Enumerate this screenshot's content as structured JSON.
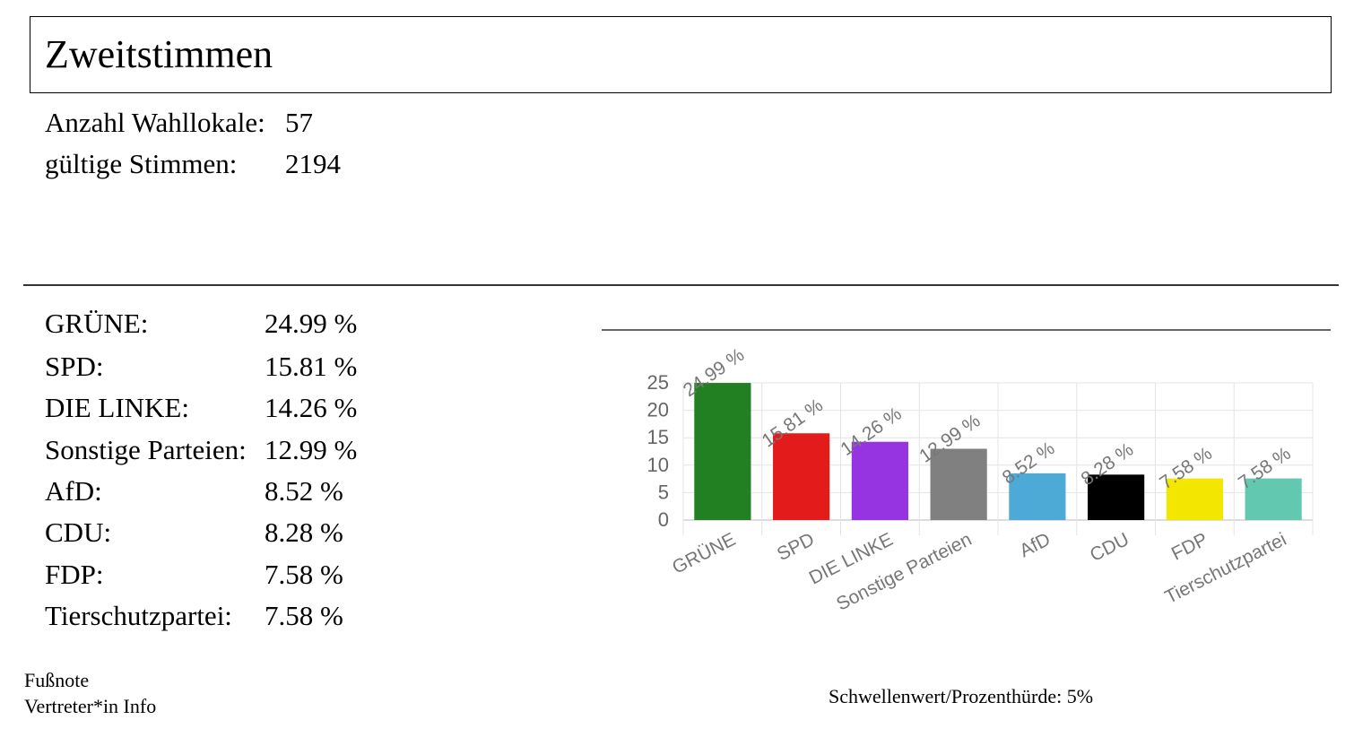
{
  "header": {
    "title": "Zweitstimmen"
  },
  "stats": [
    {
      "label": "Anzahl Wahllokale:",
      "value": "57"
    },
    {
      "label": "gültige Stimmen:",
      "value": "2194"
    }
  ],
  "results": [
    {
      "label": "GRÜNE:",
      "value": "24.99 %"
    },
    {
      "label": "SPD:",
      "value": "15.81 %"
    },
    {
      "label": "DIE LINKE:",
      "value": "14.26 %"
    },
    {
      "label": "Sonstige Parteien:",
      "value": "12.99 %"
    },
    {
      "label": "AfD:",
      "value": "8.52 %"
    },
    {
      "label": "CDU:",
      "value": "8.28 %"
    },
    {
      "label": "FDP:",
      "value": "7.58 %"
    },
    {
      "label": "Tierschutzpartei:",
      "value": "7.58 %"
    }
  ],
  "footer": {
    "line1": "Fußnote",
    "line2": "Vertreter*in Info"
  },
  "threshold": "Schwellenwert/Prozenthürde: 5%",
  "chart_data": {
    "type": "bar",
    "categories": [
      "GRÜNE",
      "SPD",
      "DIE LINKE",
      "Sonstige Parteien",
      "AfD",
      "CDU",
      "FDP",
      "Tierschutzpartei"
    ],
    "values": [
      24.99,
      15.81,
      14.26,
      12.99,
      8.52,
      8.28,
      7.58,
      7.58
    ],
    "data_labels": [
      "24.99 %",
      "15.81 %",
      "14.26 %",
      "12.99 %",
      "8.52 %",
      "8.28 %",
      "7.58 %",
      "7.58 %"
    ],
    "colors": [
      "#228022",
      "#e31b1b",
      "#9534e0",
      "#808080",
      "#4daad7",
      "#000000",
      "#f3e600",
      "#62c8b0"
    ],
    "yticks": [
      0,
      5,
      10,
      15,
      20,
      25
    ],
    "ylim": [
      0,
      25
    ],
    "grid": true,
    "title": "",
    "xlabel": "",
    "ylabel": ""
  }
}
